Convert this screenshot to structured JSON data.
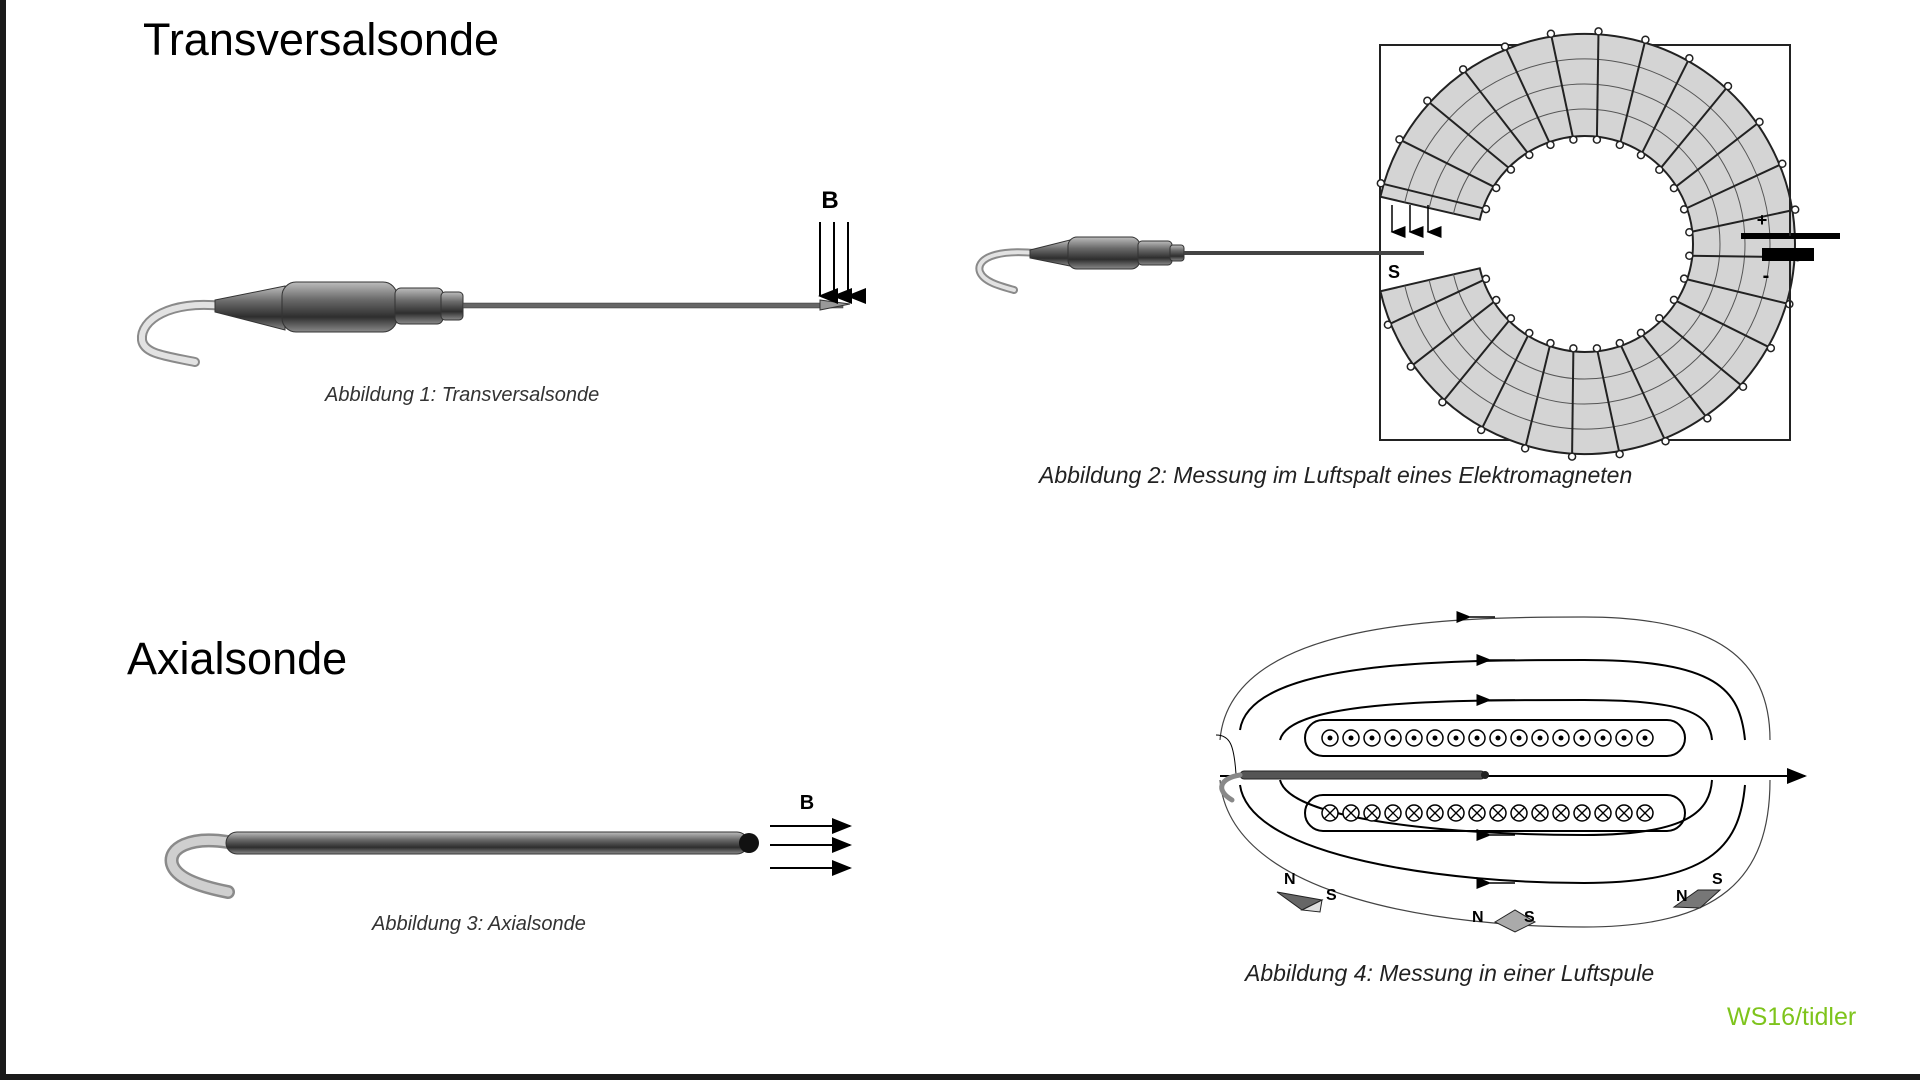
{
  "headings": {
    "transversal": "Transversalsonde",
    "axial": "Axialsonde"
  },
  "captions": {
    "fig1": "Abbildung 1: Transversalsonde",
    "fig2": "Abbildung 2: Messung im Luftspalt eines Elektromagneten",
    "fig3": "Abbildung 3: Axialsonde",
    "fig4": "Abbildung 4: Messung in einer Luftspule"
  },
  "labels": {
    "field": "B",
    "plus": "+",
    "minus": "-",
    "south": "S",
    "north": "N"
  },
  "credit": "WS16/tidler",
  "colors": {
    "credit": "#7ec41c",
    "core": "#d4d4d4"
  }
}
